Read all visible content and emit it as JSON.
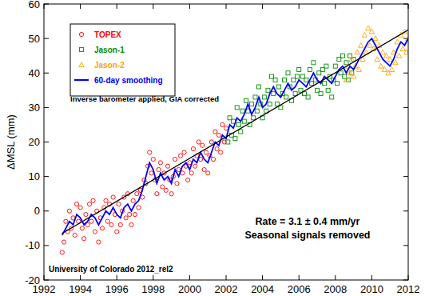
{
  "chart_data": {
    "type": "scatter",
    "y_label": "ΔMSL (mm)",
    "xlim": [
      1992,
      2012
    ],
    "ylim": [
      -20,
      60
    ],
    "xticks": [
      1992,
      1994,
      1996,
      1998,
      2000,
      2002,
      2004,
      2006,
      2008,
      2010,
      2012
    ],
    "yticks": [
      -20,
      -10,
      0,
      10,
      20,
      30,
      40,
      50,
      60
    ],
    "grid": false,
    "legend": "top-left",
    "annotations": [
      "Inverse barometer applied, GIA corrected",
      "Rate = 3.1 ± 0.4 mm/yr",
      "Seasonal signals removed",
      "University of Colorado 2012_rel2"
    ],
    "series": [
      {
        "name": "TOPEX",
        "type": "scatter",
        "marker": "circle",
        "color": "#ff0000",
        "x": [
          1993.0,
          1993.1,
          1993.2,
          1993.3,
          1993.4,
          1993.5,
          1993.6,
          1993.7,
          1993.8,
          1993.9,
          1994.0,
          1994.1,
          1994.2,
          1994.3,
          1994.4,
          1994.5,
          1994.6,
          1994.7,
          1994.8,
          1994.9,
          1995.0,
          1995.1,
          1995.2,
          1995.3,
          1995.4,
          1995.5,
          1995.6,
          1995.7,
          1995.8,
          1995.9,
          1996.0,
          1996.1,
          1996.2,
          1996.3,
          1996.4,
          1996.5,
          1996.6,
          1996.7,
          1996.8,
          1996.9,
          1997.0,
          1997.1,
          1997.2,
          1997.3,
          1997.4,
          1997.5,
          1997.6,
          1997.7,
          1997.8,
          1997.9,
          1998.0,
          1998.1,
          1998.2,
          1998.3,
          1998.4,
          1998.5,
          1998.6,
          1998.7,
          1998.8,
          1998.9,
          1999.0,
          1999.1,
          1999.2,
          1999.3,
          1999.4,
          1999.5,
          1999.6,
          1999.7,
          1999.8,
          1999.9,
          2000.0,
          2000.1,
          2000.2,
          2000.3,
          2000.4,
          2000.5,
          2000.6,
          2000.7,
          2000.8,
          2000.9,
          2001.0,
          2001.1,
          2001.2,
          2001.3,
          2001.4,
          2001.5,
          2001.6,
          2001.7,
          2001.8,
          2001.9,
          2002.0
        ],
        "values": [
          -12,
          -9,
          -3,
          -6,
          0,
          -5,
          -2,
          -7,
          2,
          -3,
          1,
          -5,
          -8,
          -1,
          -4,
          2,
          -3,
          3,
          -6,
          0,
          -9,
          -2,
          -5,
          1,
          3,
          -3,
          2,
          -4,
          4,
          -1,
          -6,
          2,
          -4,
          0,
          4,
          -2,
          5,
          -1,
          -4,
          3,
          -1,
          5,
          1,
          6,
          4,
          9,
          8,
          13,
          17,
          11,
          15,
          9,
          5,
          12,
          14,
          7,
          11,
          6,
          13,
          9,
          5,
          10,
          15,
          8,
          12,
          16,
          11,
          17,
          13,
          9,
          14,
          11,
          18,
          13,
          16,
          20,
          15,
          19,
          12,
          17,
          11,
          16,
          20,
          15,
          23,
          18,
          22,
          17,
          25,
          20,
          24
        ]
      },
      {
        "name": "Jason-1",
        "type": "scatter",
        "marker": "square",
        "color": "#008c00",
        "x": [
          2002.1,
          2002.2,
          2002.3,
          2002.4,
          2002.5,
          2002.6,
          2002.7,
          2002.8,
          2002.9,
          2003.0,
          2003.1,
          2003.2,
          2003.3,
          2003.4,
          2003.5,
          2003.6,
          2003.7,
          2003.8,
          2003.9,
          2004.0,
          2004.1,
          2004.2,
          2004.3,
          2004.4,
          2004.5,
          2004.6,
          2004.7,
          2004.8,
          2004.9,
          2005.0,
          2005.1,
          2005.2,
          2005.3,
          2005.4,
          2005.5,
          2005.6,
          2005.7,
          2005.8,
          2005.9,
          2006.0,
          2006.1,
          2006.2,
          2006.3,
          2006.4,
          2006.5,
          2006.6,
          2006.7,
          2006.8,
          2006.9,
          2007.0,
          2007.1,
          2007.2,
          2007.3,
          2007.4,
          2007.5,
          2007.6,
          2007.7,
          2007.8,
          2007.9,
          2008.0,
          2008.1,
          2008.2,
          2008.3,
          2008.4,
          2008.5,
          2008.6,
          2008.7,
          2008.8,
          2008.9,
          2009.0
        ],
        "values": [
          20,
          27,
          22,
          26,
          21,
          30,
          25,
          23,
          29,
          26,
          32,
          29,
          25,
          31,
          27,
          33,
          29,
          36,
          31,
          27,
          33,
          29,
          35,
          31,
          39,
          34,
          38,
          31,
          36,
          30,
          34,
          38,
          33,
          40,
          36,
          32,
          38,
          34,
          39,
          41,
          35,
          39,
          34,
          38,
          33,
          41,
          37,
          43,
          38,
          35,
          40,
          34,
          41,
          37,
          42,
          35,
          39,
          33,
          38,
          42,
          37,
          44,
          40,
          45,
          39,
          43,
          38,
          45,
          40,
          44
        ]
      },
      {
        "name": "Jason-2",
        "type": "scatter",
        "marker": "triangle",
        "color": "#ffa500",
        "x": [
          2008.6,
          2008.7,
          2008.8,
          2008.9,
          2009.0,
          2009.1,
          2009.2,
          2009.3,
          2009.4,
          2009.5,
          2009.6,
          2009.7,
          2009.8,
          2009.9,
          2010.0,
          2010.1,
          2010.2,
          2010.3,
          2010.4,
          2010.5,
          2010.6,
          2010.7,
          2010.8,
          2010.9,
          2011.0,
          2011.1,
          2011.2,
          2011.3,
          2011.4,
          2011.5,
          2011.6,
          2011.7,
          2011.8,
          2011.9,
          2012.0
        ],
        "values": [
          38,
          42,
          40,
          44,
          39,
          42,
          46,
          41,
          48,
          44,
          51,
          46,
          53,
          48,
          52,
          47,
          50,
          44,
          48,
          42,
          46,
          41,
          45,
          40,
          44,
          41,
          46,
          43,
          49,
          45,
          51,
          47,
          52,
          46,
          50
        ]
      },
      {
        "name": "60-day smoothing",
        "type": "line",
        "line_style": "solid",
        "color": "#0000ff",
        "x": [
          1993.0,
          1993.2,
          1993.4,
          1993.6,
          1993.8,
          1994.0,
          1994.2,
          1994.4,
          1994.6,
          1994.8,
          1995.0,
          1995.2,
          1995.4,
          1995.6,
          1995.8,
          1996.0,
          1996.2,
          1996.4,
          1996.6,
          1996.8,
          1997.0,
          1997.2,
          1997.4,
          1997.6,
          1997.8,
          1998.0,
          1998.2,
          1998.4,
          1998.6,
          1998.8,
          1999.0,
          1999.2,
          1999.4,
          1999.6,
          1999.8,
          2000.0,
          2000.2,
          2000.4,
          2000.6,
          2000.8,
          2001.0,
          2001.2,
          2001.4,
          2001.6,
          2001.8,
          2002.0,
          2002.2,
          2002.4,
          2002.6,
          2002.8,
          2003.0,
          2003.2,
          2003.4,
          2003.6,
          2003.8,
          2004.0,
          2004.2,
          2004.4,
          2004.6,
          2004.8,
          2005.0,
          2005.2,
          2005.4,
          2005.6,
          2005.8,
          2006.0,
          2006.2,
          2006.4,
          2006.6,
          2006.8,
          2007.0,
          2007.2,
          2007.4,
          2007.6,
          2007.8,
          2008.0,
          2008.2,
          2008.4,
          2008.6,
          2008.8,
          2009.0,
          2009.2,
          2009.4,
          2009.6,
          2009.8,
          2010.0,
          2010.2,
          2010.4,
          2010.6,
          2010.8,
          2011.0,
          2011.2,
          2011.4,
          2011.6,
          2011.8,
          2012.0
        ],
        "values": [
          -7,
          -5,
          -3,
          -4,
          -1,
          -2,
          -4,
          -3,
          -1,
          -2,
          -4,
          -2,
          0,
          -1,
          1,
          -1,
          -2,
          1,
          2,
          0,
          2,
          3,
          6,
          10,
          14,
          12,
          8,
          11,
          9,
          10,
          8,
          12,
          10,
          13,
          14,
          12,
          15,
          14,
          17,
          15,
          14,
          17,
          20,
          19,
          22,
          21,
          25,
          24,
          27,
          26,
          28,
          31,
          28,
          30,
          33,
          30,
          31,
          34,
          36,
          34,
          33,
          35,
          37,
          35,
          36,
          38,
          37,
          36,
          38,
          40,
          38,
          37,
          39,
          38,
          37,
          39,
          41,
          42,
          40,
          42,
          41,
          43,
          45,
          47,
          49,
          50,
          48,
          46,
          44,
          43,
          42,
          44,
          47,
          49,
          48,
          50
        ]
      },
      {
        "type": "line",
        "line_style": "solid",
        "color": "#000000",
        "x": [
          1993,
          2012
        ],
        "values": [
          -6.5,
          52.5
        ]
      }
    ]
  }
}
